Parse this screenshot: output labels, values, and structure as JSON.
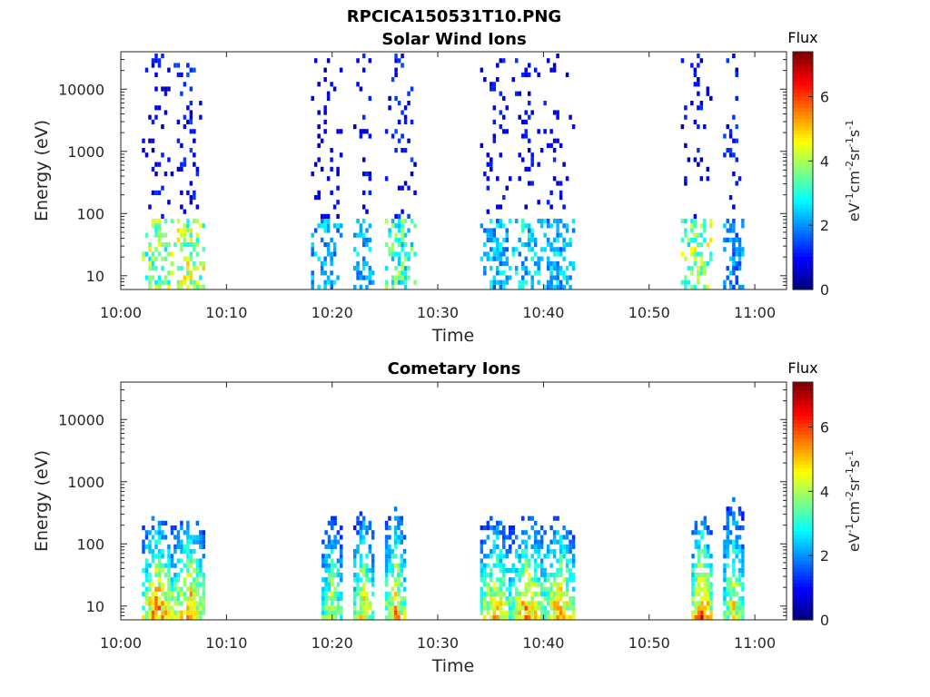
{
  "figure": {
    "title": "RPCICA150531T10.PNG"
  },
  "chart_data": [
    {
      "type": "heatmap",
      "title": "Solar Wind Ions",
      "xlabel": "Time",
      "ylabel": "Energy (eV)",
      "x_ticks": [
        "10:00",
        "10:10",
        "10:20",
        "10:30",
        "10:40",
        "10:50",
        "11:00"
      ],
      "x_range_minutes": [
        0,
        63
      ],
      "y_scale": "log",
      "y_ticks": [
        "10",
        "100",
        "1000",
        "10000"
      ],
      "y_range_ev": [
        6,
        40000
      ],
      "colorbar": {
        "title": "Flux",
        "label": "eV-1cm-2sr-1s-1",
        "ticks": [
          "0",
          "2",
          "4",
          "6"
        ],
        "range": [
          0,
          7.4
        ],
        "colormap": "jet"
      },
      "bursts": [
        {
          "time": "10:02–10:05",
          "low_energy_flux": 4.6,
          "high_energy_flux": 1.0
        },
        {
          "time": "10:05–10:08",
          "low_energy_flux": 4.8,
          "high_energy_flux": 1.2
        },
        {
          "time": "10:18–10:21",
          "low_energy_flux": 2.6,
          "high_energy_flux": 0.8
        },
        {
          "time": "10:22–10:24",
          "low_energy_flux": 2.8,
          "high_energy_flux": 1.0
        },
        {
          "time": "10:25–10:28",
          "low_energy_flux": 4.0,
          "high_energy_flux": 1.2
        },
        {
          "time": "10:34–10:37",
          "low_energy_flux": 2.8,
          "high_energy_flux": 1.0
        },
        {
          "time": "10:37–10:40",
          "low_energy_flux": 3.0,
          "high_energy_flux": 1.0
        },
        {
          "time": "10:40–10:43",
          "low_energy_flux": 2.8,
          "high_energy_flux": 1.0
        },
        {
          "time": "10:53–10:56",
          "low_energy_flux": 4.6,
          "high_energy_flux": 1.0
        },
        {
          "time": "10:57–10:59",
          "low_energy_flux": 2.4,
          "high_energy_flux": 1.2
        }
      ]
    },
    {
      "type": "heatmap",
      "title": "Cometary Ions",
      "xlabel": "Time",
      "ylabel": "Energy (eV)",
      "x_ticks": [
        "10:00",
        "10:10",
        "10:20",
        "10:30",
        "10:40",
        "10:50",
        "11:00"
      ],
      "x_range_minutes": [
        0,
        63
      ],
      "y_scale": "log",
      "y_ticks": [
        "10",
        "100",
        "1000",
        "10000"
      ],
      "y_range_ev": [
        6,
        40000
      ],
      "colorbar": {
        "title": "Flux",
        "label": "eV-1cm-2sr-1s-1",
        "ticks": [
          "0",
          "2",
          "4",
          "6"
        ],
        "range": [
          0,
          7.4
        ],
        "colormap": "jet"
      },
      "bursts": [
        {
          "time": "10:02–10:05",
          "peak_flux": 6.5,
          "max_energy_ev": 300
        },
        {
          "time": "10:05–10:08",
          "peak_flux": 6.4,
          "max_energy_ev": 300
        },
        {
          "time": "10:19–10:21",
          "peak_flux": 5.2,
          "max_energy_ev": 300
        },
        {
          "time": "10:22–10:24",
          "peak_flux": 5.6,
          "max_energy_ev": 400
        },
        {
          "time": "10:25–10:27",
          "peak_flux": 6.0,
          "max_energy_ev": 400
        },
        {
          "time": "10:34–10:37",
          "peak_flux": 5.8,
          "max_energy_ev": 300
        },
        {
          "time": "10:37–10:40",
          "peak_flux": 6.4,
          "max_energy_ev": 300
        },
        {
          "time": "10:40–10:43",
          "peak_flux": 6.2,
          "max_energy_ev": 300
        },
        {
          "time": "10:54–10:56",
          "peak_flux": 6.8,
          "max_energy_ev": 300
        },
        {
          "time": "10:57–10:59",
          "peak_flux": 5.4,
          "max_energy_ev": 600
        }
      ]
    }
  ]
}
